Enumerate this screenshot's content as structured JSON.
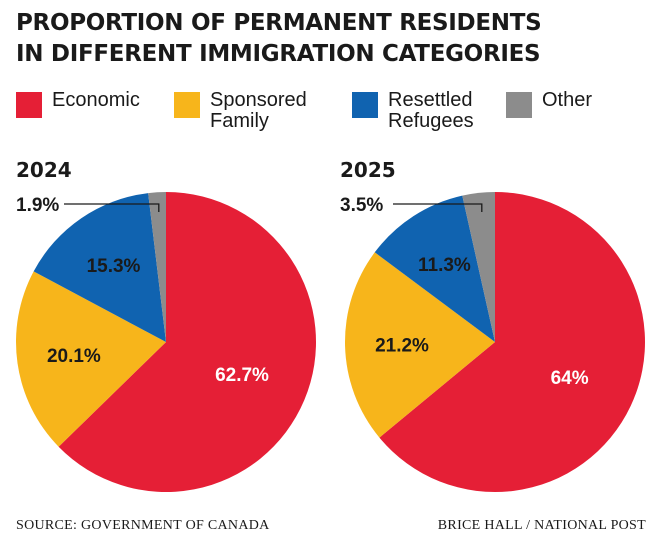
{
  "title_line1": "PROPORTION OF PERMANENT RESIDENTS",
  "title_line2": "IN DIFFERENT IMMIGRATION CATEGORIES",
  "legend": [
    {
      "label": "Economic",
      "color": "#e51f36"
    },
    {
      "label": "Sponsored Family",
      "color": "#f7b51b"
    },
    {
      "label": "Resettled Refugees",
      "color": "#1063b0"
    },
    {
      "label": "Other",
      "color": "#8c8c8c"
    }
  ],
  "chart_data": [
    {
      "type": "pie",
      "title": "2024",
      "categories": [
        "Economic",
        "Sponsored Family",
        "Resettled Refugees",
        "Other"
      ],
      "values": [
        62.7,
        20.1,
        15.3,
        1.9
      ],
      "labels": [
        "62.7%",
        "20.1%",
        "15.3%",
        "1.9%"
      ]
    },
    {
      "type": "pie",
      "title": "2025",
      "categories": [
        "Economic",
        "Sponsored Family",
        "Resettled Refugees",
        "Other"
      ],
      "values": [
        64,
        21.2,
        11.3,
        3.5
      ],
      "labels": [
        "64%",
        "21.2%",
        "11.3%",
        "3.5%"
      ]
    }
  ],
  "source": "SOURCE: GOVERNMENT OF CANADA",
  "credit": "BRICE HALL  / NATIONAL POST"
}
